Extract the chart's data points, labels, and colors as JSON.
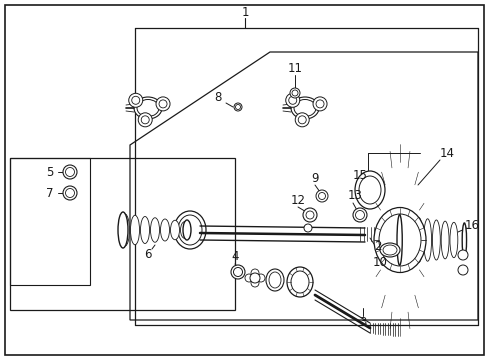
{
  "background_color": "#ffffff",
  "line_color": "#1a1a1a",
  "fig_width": 4.89,
  "fig_height": 3.6,
  "dpi": 100,
  "font_size": 8.5
}
